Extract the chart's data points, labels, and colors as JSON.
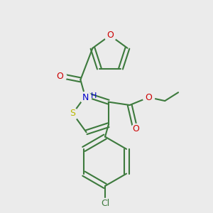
{
  "bg_color": "#ebebeb",
  "bond_color": "#3d7a3d",
  "S_color": "#b8b800",
  "O_color": "#cc0000",
  "N_color": "#0000cc",
  "Cl_color": "#3d7a3d",
  "line_width": 1.5,
  "figsize": [
    3.0,
    3.0
  ],
  "dpi": 100,
  "xlim": [
    0,
    300
  ],
  "ylim": [
    0,
    300
  ]
}
